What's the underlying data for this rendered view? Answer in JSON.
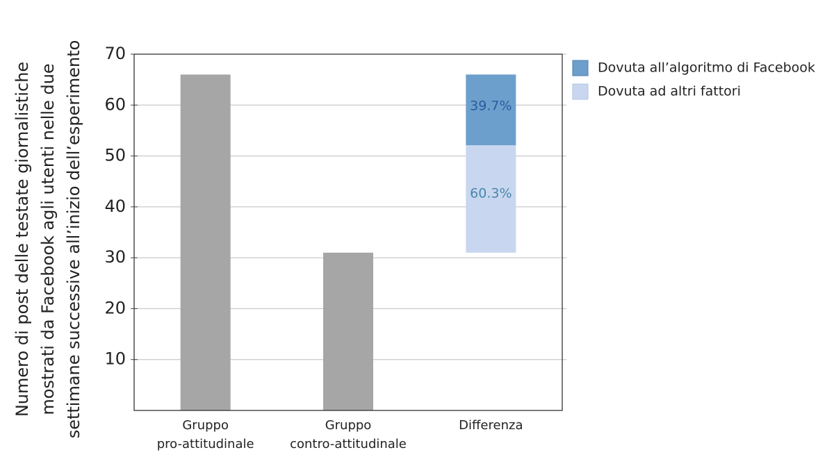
{
  "chart_data": {
    "type": "bar",
    "y_label": [
      "Numero di post delle testate giornalistiche",
      "mostrati da Facebook agli utenti nelle due",
      "settimane successive all’inizio dell’esperimento"
    ],
    "categories": [
      [
        "Gruppo",
        "pro-attitudinale"
      ],
      [
        "Gruppo",
        "contro-attitudinale"
      ],
      [
        "Differenza"
      ]
    ],
    "series": [
      {
        "color": "#a6a6a6",
        "values": [
          66,
          31,
          null
        ]
      },
      {
        "name": "Dovuta ad altri fattori",
        "color": "#c8d7ef",
        "label_color": "#4a86ad",
        "values": [
          null,
          null,
          21.1
        ],
        "segment_labels": [
          null,
          null,
          "60.3%"
        ]
      },
      {
        "name": "Dovuta all’algoritmo di Facebook",
        "color": "#6d9fcd",
        "label_color": "#2c5c9c",
        "values": [
          null,
          null,
          13.9
        ],
        "segment_labels": [
          null,
          null,
          "39.7%"
        ]
      }
    ],
    "ylim": [
      0,
      70
    ],
    "yticks": [
      10,
      20,
      30,
      40,
      50,
      60,
      70
    ],
    "grid": true,
    "legend": "outside-top-right"
  }
}
